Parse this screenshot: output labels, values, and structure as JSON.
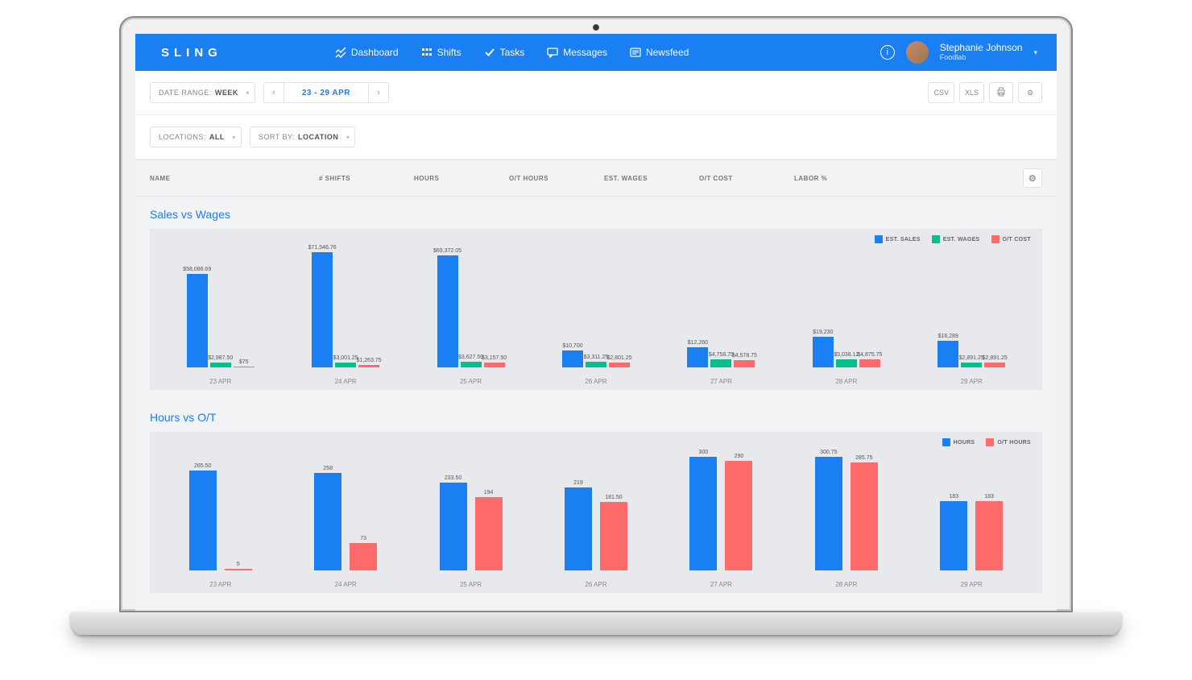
{
  "brand": "SLING",
  "nav": {
    "dashboard": "Dashboard",
    "shifts": "Shifts",
    "tasks": "Tasks",
    "messages": "Messages",
    "newsfeed": "Newsfeed"
  },
  "user": {
    "name": "Stephanie Johnson",
    "org": "Foodlab"
  },
  "toolbar": {
    "date_range_label": "DATE RANGE:",
    "date_range_value": "WEEK",
    "date_display": "23 - 29 APR",
    "csv": "CSV",
    "xls": "XLS"
  },
  "filters": {
    "locations_label": "LOCATIONS:",
    "locations_value": "ALL",
    "sort_label": "SORT BY:",
    "sort_value": "LOCATION"
  },
  "columns": {
    "name": "NAME",
    "shifts": "# SHIFTS",
    "hours": "HOURS",
    "ot_hours": "O/T HOURS",
    "wages": "EST. WAGES",
    "ot_cost": "O/T COST",
    "labor": "LABOR %"
  },
  "colors": {
    "primary": "#1A7FF3",
    "blue": "#1A7FF3",
    "green": "#00C08B",
    "red": "#FF6B6B",
    "chart_bg": "#e8e9ec",
    "page_bg": "#f2f3f5"
  },
  "chart1": {
    "title": "Sales vs Wages",
    "type": "grouped-bar",
    "legend": [
      {
        "label": "EST. SALES",
        "color": "#1A7FF3"
      },
      {
        "label": "EST. WAGES",
        "color": "#00C08B"
      },
      {
        "label": "O/T COST",
        "color": "#FF6B6B"
      }
    ],
    "y_max": 75000,
    "categories": [
      "23 APR",
      "24 APR",
      "25 APR",
      "26 APR",
      "27 APR",
      "28 APR",
      "29 APR"
    ],
    "series": {
      "sales": [
        58086.69,
        71546.76,
        69372.05,
        10700,
        12260,
        19230,
        16289
      ],
      "wages": [
        2987.5,
        3001.25,
        3627.5,
        3311.25,
        4758.75,
        5038.12,
        2891.25
      ],
      "ot": [
        75,
        1263.75,
        3157.5,
        2801.25,
        4578.75,
        4875.75,
        2891.25
      ]
    },
    "labels": {
      "sales": [
        "$58,086.69",
        "$71,546.76",
        "$69,372.05",
        "$10,700",
        "$12,260",
        "$19,230",
        "$16,289"
      ],
      "wages": [
        "$2,987.50",
        "$3,001.25",
        "$3,627.50",
        "$3,311.25",
        "$4,758.75",
        "$5,038.12",
        "$2,891.25"
      ],
      "ot": [
        "$75",
        "$1,263.75",
        "$3,157.50",
        "$2,801.25",
        "$4,578.75",
        "$4,875.75",
        "$2,891.25"
      ]
    }
  },
  "chart2": {
    "title": "Hours vs O/T",
    "type": "grouped-bar",
    "legend": [
      {
        "label": "HOURS",
        "color": "#1A7FF3"
      },
      {
        "label": "O/T HOURS",
        "color": "#FF6B6B"
      }
    ],
    "y_max": 320,
    "categories": [
      "23 APR",
      "24 APR",
      "25 APR",
      "26 APR",
      "27 APR",
      "28 APR",
      "29 APR"
    ],
    "series": {
      "hours": [
        265.5,
        258,
        233.5,
        219,
        300,
        300.75,
        183
      ],
      "ot": [
        5,
        73,
        194,
        181.5,
        290,
        285.75,
        183
      ]
    },
    "labels": {
      "hours": [
        "265.50",
        "258",
        "233.50",
        "219",
        "300",
        "300.75",
        "183"
      ],
      "ot": [
        "5",
        "73",
        "194",
        "181.50",
        "290",
        "285.75",
        "183"
      ]
    }
  }
}
